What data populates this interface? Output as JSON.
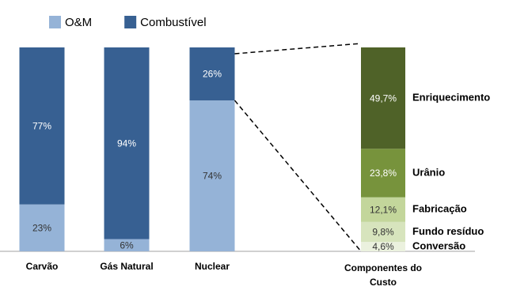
{
  "chart_data": [
    {
      "type": "stacked_bar",
      "categories": [
        "Carvão",
        "Gás Natural",
        "Nuclear"
      ],
      "ylim": [
        0,
        100
      ],
      "series": [
        {
          "name": "O&M",
          "color": "#95b3d7",
          "values": [
            23,
            6,
            74
          ],
          "value_labels": [
            "23%",
            "6%",
            "74%"
          ]
        },
        {
          "name": "Combustível",
          "color": "#376092",
          "values": [
            77,
            94,
            26
          ],
          "value_labels": [
            "77%",
            "94%",
            "26%"
          ]
        }
      ]
    },
    {
      "type": "breakdown_bar",
      "categories": [
        "Componentes do Custo"
      ],
      "ylim": [
        0,
        100
      ],
      "series": [
        {
          "name": "Conversão",
          "color": "#ebf1de",
          "values": [
            4.6
          ],
          "value_labels": [
            "4,6%"
          ]
        },
        {
          "name": "Fundo resíduo",
          "color": "#d7e4bd",
          "values": [
            9.8
          ],
          "value_labels": [
            "9,8%"
          ]
        },
        {
          "name": "Fabricação",
          "color": "#c3d69b",
          "values": [
            12.1
          ],
          "value_labels": [
            "12,1%"
          ]
        },
        {
          "name": "Urânio",
          "color": "#77933c",
          "values": [
            23.8
          ],
          "value_labels": [
            "23,8%"
          ]
        },
        {
          "name": "Enriquecimento",
          "color": "#4f6228",
          "values": [
            49.7
          ],
          "value_labels": [
            "49,7%"
          ]
        }
      ]
    }
  ]
}
